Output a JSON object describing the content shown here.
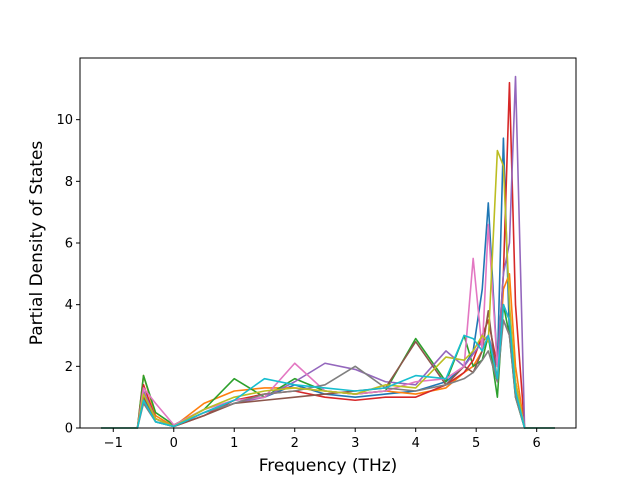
{
  "chart_data": {
    "type": "line",
    "title": "",
    "xlabel": "Frequency (THz)",
    "ylabel": "Partial Density of States",
    "xlim": [
      -1.55,
      6.65
    ],
    "ylim": [
      0,
      12.0
    ],
    "xticks": [
      -1,
      0,
      1,
      2,
      3,
      4,
      5,
      6
    ],
    "xtick_labels": [
      "−1",
      "0",
      "1",
      "2",
      "3",
      "4",
      "5",
      "6"
    ],
    "yticks": [
      0,
      2,
      4,
      6,
      8,
      10
    ],
    "ytick_labels": [
      "0",
      "2",
      "4",
      "6",
      "8",
      "10"
    ],
    "grid": false,
    "legend": "none",
    "x": [
      -1.2,
      -0.6,
      -0.5,
      -0.3,
      0,
      0.5,
      1,
      1.5,
      2,
      2.5,
      3,
      3.5,
      4,
      4.5,
      4.8,
      4.95,
      5.1,
      5.2,
      5.35,
      5.45,
      5.55,
      5.65,
      5.8,
      6.3
    ],
    "series": [
      {
        "color": "#1f77b4",
        "values": [
          0,
          0,
          1.0,
          0.3,
          0.05,
          0.5,
          0.9,
          1.0,
          1.4,
          1.1,
          1.0,
          1.1,
          1.2,
          1.5,
          2.0,
          2.5,
          4.5,
          7.3,
          2.0,
          9.4,
          3.0,
          1.5,
          0,
          0
        ]
      },
      {
        "color": "#ff7f0e",
        "values": [
          0,
          0,
          1.7,
          0.4,
          0.05,
          0.8,
          1.2,
          1.3,
          1.3,
          1.2,
          1.1,
          1.2,
          1.1,
          1.3,
          1.8,
          2.0,
          2.5,
          3.0,
          1.5,
          4.5,
          5.0,
          2.0,
          0,
          0
        ]
      },
      {
        "color": "#2ca02c",
        "values": [
          0,
          0,
          1.7,
          0.5,
          0.1,
          0.6,
          1.6,
          1.0,
          1.6,
          1.2,
          1.1,
          1.2,
          2.9,
          1.5,
          3.0,
          2.0,
          2.2,
          3.0,
          1.0,
          4.0,
          3.0,
          1.0,
          0,
          0
        ]
      },
      {
        "color": "#d62728",
        "values": [
          0,
          0,
          1.4,
          0.3,
          0.05,
          0.4,
          0.9,
          1.1,
          1.2,
          1.0,
          0.9,
          1.0,
          1.0,
          1.4,
          1.8,
          2.2,
          3.0,
          3.5,
          2.0,
          5.0,
          11.2,
          4.0,
          0,
          0
        ]
      },
      {
        "color": "#9467bd",
        "values": [
          0,
          0,
          1.2,
          0.3,
          0.05,
          0.5,
          0.8,
          1.0,
          1.5,
          2.1,
          1.9,
          1.5,
          1.4,
          2.5,
          2.0,
          2.4,
          2.8,
          3.0,
          2.0,
          5.0,
          6.0,
          11.4,
          0,
          0
        ]
      },
      {
        "color": "#8c564b",
        "values": [
          0,
          0,
          1.0,
          0.2,
          0.05,
          0.4,
          0.8,
          0.9,
          1.0,
          1.1,
          1.2,
          1.3,
          2.8,
          1.4,
          2.0,
          1.8,
          2.5,
          3.8,
          1.5,
          4.0,
          3.5,
          1.2,
          0,
          0
        ]
      },
      {
        "color": "#e377c2",
        "values": [
          0,
          0,
          1.3,
          0.8,
          0.1,
          0.6,
          0.9,
          1.0,
          2.1,
          1.2,
          1.1,
          1.2,
          1.5,
          1.6,
          2.0,
          5.5,
          2.5,
          6.6,
          2.0,
          3.5,
          3.0,
          1.5,
          0,
          0
        ]
      },
      {
        "color": "#7f7f7f",
        "values": [
          0,
          0,
          0.8,
          0.2,
          0.05,
          0.5,
          0.8,
          1.1,
          1.2,
          1.4,
          2.0,
          1.3,
          1.2,
          1.4,
          1.6,
          1.8,
          2.2,
          2.5,
          1.5,
          3.5,
          3.0,
          1.0,
          0,
          0
        ]
      },
      {
        "color": "#bcbd22",
        "values": [
          0,
          0,
          1.1,
          0.3,
          0.05,
          0.6,
          1.0,
          1.2,
          1.3,
          1.2,
          1.1,
          1.4,
          1.3,
          2.3,
          2.2,
          2.5,
          3.0,
          2.8,
          9.0,
          8.5,
          4.0,
          1.5,
          0,
          0
        ]
      },
      {
        "color": "#17becf",
        "values": [
          0,
          0,
          0.9,
          0.2,
          0.05,
          0.5,
          0.9,
          1.6,
          1.4,
          1.3,
          1.2,
          1.3,
          1.7,
          1.6,
          3.0,
          2.9,
          2.5,
          3.0,
          1.6,
          4.0,
          3.5,
          1.2,
          0,
          0
        ]
      }
    ]
  }
}
